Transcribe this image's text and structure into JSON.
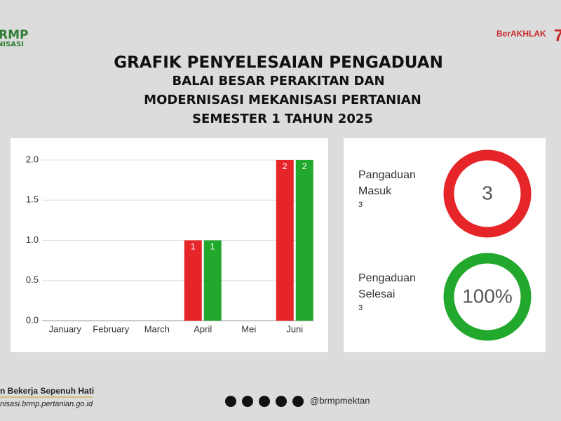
{
  "header": {
    "logo_left": [
      "RMP",
      "NISASI"
    ],
    "logo_right": "BerAKHLAK",
    "title": [
      "GRAFIK PENYELESAIAN PENGADUAN",
      "BALAI BESAR PERAKITAN DAN",
      "MODERNISASI MEKANISASI PERTANIAN",
      "SEMESTER 1 TAHUN 2025"
    ]
  },
  "chart_data": {
    "type": "bar",
    "categories": [
      "January",
      "February",
      "March",
      "April",
      "Mei",
      "Juni"
    ],
    "series": [
      {
        "color": "#e52528",
        "values": [
          0,
          0,
          0,
          1,
          0,
          2
        ]
      },
      {
        "color": "#22a82c",
        "values": [
          0,
          0,
          0,
          1,
          0,
          2
        ]
      }
    ],
    "ylim": [
      0,
      2.1
    ],
    "yticks": [
      {
        "value": 0,
        "label": "0.0"
      },
      {
        "value": 0.5,
        "label": "0.5"
      },
      {
        "value": 1,
        "label": "1.0"
      },
      {
        "value": 1.5,
        "label": "1.5"
      },
      {
        "value": 2,
        "label": "2.0"
      }
    ],
    "grid": true
  },
  "cards": [
    {
      "label": "Pangaduan Masuk",
      "value": 3,
      "center": 3,
      "color": "#e52528"
    },
    {
      "label": "Pengaduan Selesai",
      "value": 3,
      "center": {
        "value": 100,
        "label": "100%"
      },
      "color": "#22a82c"
    }
  ],
  "footer": {
    "tagline": "n Bekerja Sepenuh Hati",
    "website": "nisasi.brmp.pertanian.go.id",
    "handle": "@brmpmektan"
  }
}
